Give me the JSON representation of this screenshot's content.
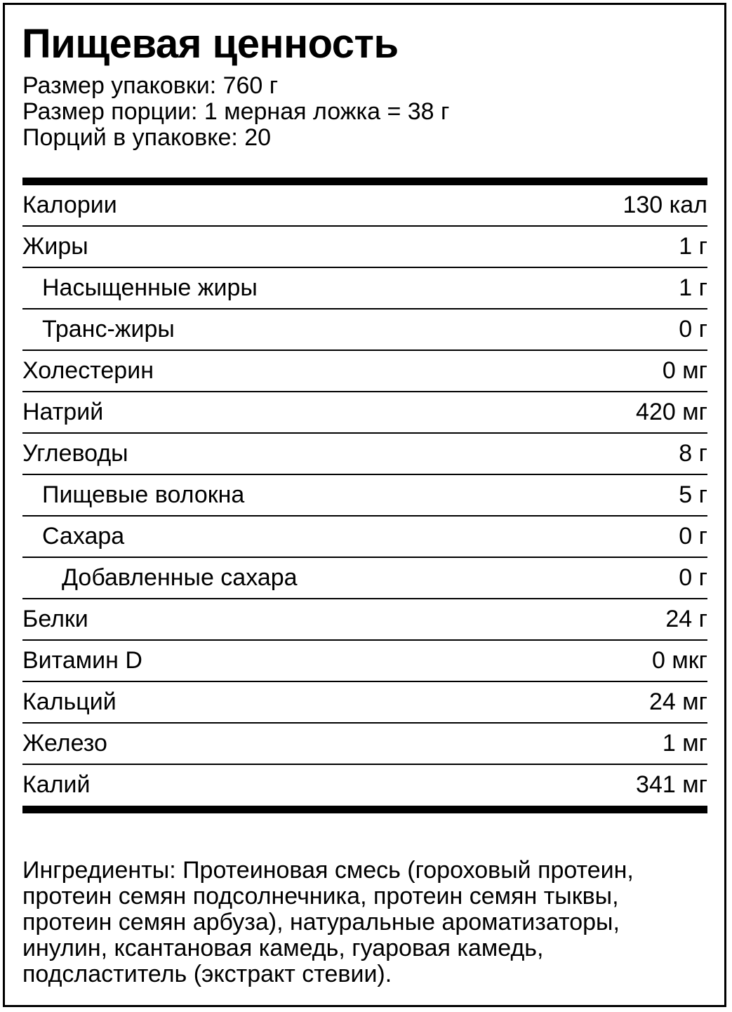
{
  "title": "Пищевая ценность",
  "info": [
    "Размер упаковки: 760 г",
    "Размер порции: 1 мерная ложка = 38 г",
    "Порций в упаковке: 20"
  ],
  "nutrients": [
    {
      "label": "Калории",
      "value": "130 кал",
      "level": 0
    },
    {
      "label": "Жиры",
      "value": "1 г",
      "level": 0
    },
    {
      "label": "Насыщенные жиры",
      "value": "1 г",
      "level": 1
    },
    {
      "label": "Транс-жиры",
      "value": "0 г",
      "level": 1
    },
    {
      "label": "Холестерин",
      "value": "0 мг",
      "level": 0
    },
    {
      "label": "Натрий",
      "value": "420 мг",
      "level": 0
    },
    {
      "label": "Углеводы",
      "value": "8 г",
      "level": 0
    },
    {
      "label": "Пищевые волокна",
      "value": "5 г",
      "level": 1
    },
    {
      "label": "Сахара",
      "value": "0 г",
      "level": 1
    },
    {
      "label": "Добавленные сахара",
      "value": "0 г",
      "level": 2
    },
    {
      "label": "Белки",
      "value": "24 г",
      "level": 0
    },
    {
      "label": "Витамин D",
      "value": "0 мкг",
      "level": 0
    },
    {
      "label": "Кальций",
      "value": "24 мг",
      "level": 0
    },
    {
      "label": "Железо",
      "value": "1 мг",
      "level": 0
    },
    {
      "label": "Калий",
      "value": "341 мг",
      "level": 0
    }
  ],
  "ingredients": [
    "Ингредиенты: Протеиновая смесь (гороховый протеин,",
    "протеин семян подсолнечника, протеин семян тыквы,",
    "протеин семян арбуза), натуральные ароматизаторы,",
    "инулин, ксантановая камедь, гуаровая камедь,",
    "подсластитель (экстракт стевии)."
  ]
}
